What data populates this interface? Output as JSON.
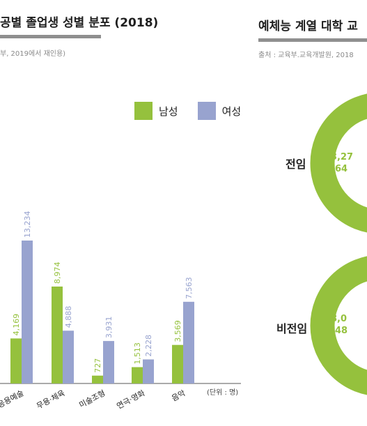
{
  "left_panel": {
    "title": "공별 졸업생 성별 분포 (2018)",
    "source": "부, 2019에서 재인용)"
  },
  "right_panel": {
    "title": "예체능 계열 대학 교",
    "source": "출처 : 교육부.교육개발원, 2018",
    "rows": [
      {
        "label": "전임",
        "value_text": "3,27",
        "percent_text": "(64"
      },
      {
        "label": "비전임",
        "value_text": "8,0",
        "percent_text": "(48"
      }
    ]
  },
  "colors": {
    "male": "#95c13d",
    "female": "#98a3cf",
    "rule": "#8f8f8f"
  },
  "chart_data": {
    "type": "bar",
    "categories": [
      "응용예술",
      "무용·체육",
      "미술조형",
      "연극·영화",
      "음악"
    ],
    "series": [
      {
        "name": "남성",
        "values": [
          4169,
          8974,
          727,
          1513,
          3569
        ],
        "labels": [
          "4,169",
          "8,974",
          "727",
          "1,513",
          "3,569"
        ]
      },
      {
        "name": "여성",
        "values": [
          13234,
          4888,
          3931,
          2228,
          7563
        ],
        "labels": [
          "13,234",
          "4,888",
          "3,931",
          "2,228",
          "7,563"
        ]
      }
    ],
    "unit_note": "(단위 : 명)",
    "legend_position": "top-right"
  }
}
